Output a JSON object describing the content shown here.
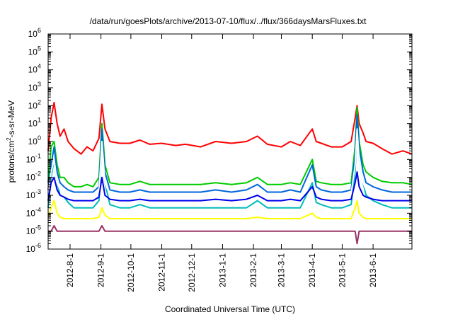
{
  "chart_data": {
    "type": "line",
    "title": "/data/run/goesPlots/archive/2013-07-10/flux/../flux/366daysMarsFluxes.txt",
    "xlabel": "Coordinated Universal Time (UTC)",
    "ylabel": {
      "pre": "protons/cm",
      "sup": "2",
      "post": "-s-sr-MeV"
    },
    "x_range": [
      "2012-07-10",
      "2013-07-10"
    ],
    "ylim": [
      1e-06,
      1000000.0
    ],
    "yscale": "log",
    "y_ticks": [
      {
        "value": 1e-06,
        "base": "10",
        "exp": "-6"
      },
      {
        "value": 1e-05,
        "base": "10",
        "exp": "-5"
      },
      {
        "value": 0.0001,
        "base": "10",
        "exp": "-4"
      },
      {
        "value": 0.001,
        "base": "10",
        "exp": "-3"
      },
      {
        "value": 0.01,
        "base": "10",
        "exp": "-2"
      },
      {
        "value": 0.1,
        "base": "10",
        "exp": "-1"
      },
      {
        "value": 1.0,
        "base": "10",
        "exp": "0"
      },
      {
        "value": 10.0,
        "base": "10",
        "exp": "1"
      },
      {
        "value": 100.0,
        "base": "10",
        "exp": "2"
      },
      {
        "value": 1000.0,
        "base": "10",
        "exp": "3"
      },
      {
        "value": 10000.0,
        "base": "10",
        "exp": "4"
      },
      {
        "value": 100000.0,
        "base": "10",
        "exp": "5"
      },
      {
        "value": 1000000.0,
        "base": "10",
        "exp": "6"
      }
    ],
    "x_ticks": [
      {
        "date": "2012-08-01",
        "label": "2012-8-1"
      },
      {
        "date": "2012-09-01",
        "label": "2012-9-1"
      },
      {
        "date": "2012-10-01",
        "label": "2012-10-1"
      },
      {
        "date": "2012-11-01",
        "label": "2012-11-1"
      },
      {
        "date": "2012-12-01",
        "label": "2012-12-1"
      },
      {
        "date": "2013-01-01",
        "label": "2013-1-1"
      },
      {
        "date": "2013-02-01",
        "label": "2013-2-1"
      },
      {
        "date": "2013-03-01",
        "label": "2013-3-1"
      },
      {
        "date": "2013-04-01",
        "label": "2013-4-1"
      },
      {
        "date": "2013-05-01",
        "label": "2013-5-1"
      },
      {
        "date": "2013-06-01",
        "label": "2013-6-1"
      }
    ],
    "grid": false,
    "legend": "none",
    "series": [
      {
        "color": "#ff0000",
        "x": [
          "2012-07-10",
          "2012-07-13",
          "2012-07-16",
          "2012-07-19",
          "2012-07-22",
          "2012-07-26",
          "2012-07-30",
          "2012-08-05",
          "2012-08-12",
          "2012-08-18",
          "2012-08-24",
          "2012-08-30",
          "2012-09-02",
          "2012-09-05",
          "2012-09-10",
          "2012-09-20",
          "2012-09-30",
          "2012-10-10",
          "2012-10-20",
          "2012-11-01",
          "2012-11-15",
          "2012-11-25",
          "2012-12-10",
          "2012-12-25",
          "2013-01-10",
          "2013-01-25",
          "2013-02-05",
          "2013-02-15",
          "2013-03-01",
          "2013-03-10",
          "2013-03-20",
          "2013-04-01",
          "2013-04-05",
          "2013-04-10",
          "2013-04-20",
          "2013-05-01",
          "2013-05-10",
          "2013-05-14",
          "2013-05-16",
          "2013-05-18",
          "2013-05-22",
          "2013-05-25",
          "2013-06-01",
          "2013-06-10",
          "2013-06-20",
          "2013-07-01",
          "2013-07-10"
        ],
        "y": [
          0.3,
          20,
          150,
          10,
          2,
          5,
          1,
          0.4,
          0.2,
          0.5,
          0.3,
          1.5,
          120,
          5,
          1,
          0.8,
          0.8,
          1.2,
          0.7,
          0.8,
          0.6,
          0.7,
          0.5,
          1,
          0.8,
          1,
          2,
          0.7,
          0.5,
          1,
          0.6,
          5,
          1,
          0.8,
          0.5,
          0.5,
          1,
          20,
          100,
          10,
          3,
          1,
          0.8,
          0.4,
          0.2,
          0.3,
          0.2
        ]
      },
      {
        "color": "#00cc00",
        "x": [
          "2012-07-10",
          "2012-07-13",
          "2012-07-16",
          "2012-07-19",
          "2012-07-22",
          "2012-07-26",
          "2012-07-30",
          "2012-08-05",
          "2012-08-12",
          "2012-08-18",
          "2012-08-24",
          "2012-08-30",
          "2012-09-02",
          "2012-09-05",
          "2012-09-10",
          "2012-09-20",
          "2012-09-30",
          "2012-10-10",
          "2012-10-20",
          "2012-11-01",
          "2012-11-15",
          "2012-11-25",
          "2012-12-10",
          "2012-12-25",
          "2013-01-10",
          "2013-01-25",
          "2013-02-05",
          "2013-02-15",
          "2013-03-01",
          "2013-03-10",
          "2013-03-20",
          "2013-04-01",
          "2013-04-05",
          "2013-04-10",
          "2013-04-20",
          "2013-05-01",
          "2013-05-10",
          "2013-05-14",
          "2013-05-16",
          "2013-05-18",
          "2013-05-22",
          "2013-05-25",
          "2013-06-01",
          "2013-06-10",
          "2013-06-20",
          "2013-07-01",
          "2013-07-10"
        ],
        "y": [
          0.005,
          0.5,
          1,
          0.05,
          0.01,
          0.01,
          0.005,
          0.003,
          0.003,
          0.004,
          0.003,
          0.01,
          10,
          0.05,
          0.005,
          0.004,
          0.004,
          0.006,
          0.004,
          0.004,
          0.004,
          0.004,
          0.004,
          0.005,
          0.004,
          0.005,
          0.01,
          0.004,
          0.004,
          0.005,
          0.004,
          0.1,
          0.006,
          0.005,
          0.004,
          0.004,
          0.005,
          0.5,
          80,
          1,
          0.05,
          0.02,
          0.01,
          0.006,
          0.005,
          0.005,
          0.004
        ]
      },
      {
        "color": "#00bbbb",
        "x": [
          "2012-07-10",
          "2012-07-13",
          "2012-07-16",
          "2012-07-19",
          "2012-07-22",
          "2012-07-26",
          "2012-07-30",
          "2012-08-05",
          "2012-08-12",
          "2012-08-18",
          "2012-08-24",
          "2012-08-30",
          "2012-09-02",
          "2012-09-05",
          "2012-09-10",
          "2012-09-20",
          "2012-09-30",
          "2012-10-10",
          "2012-10-20",
          "2012-11-01",
          "2012-11-15",
          "2012-11-25",
          "2012-12-10",
          "2012-12-25",
          "2013-01-10",
          "2013-01-25",
          "2013-02-05",
          "2013-02-15",
          "2013-03-01",
          "2013-03-10",
          "2013-03-20",
          "2013-04-01",
          "2013-04-05",
          "2013-04-10",
          "2013-04-20",
          "2013-05-01",
          "2013-05-10",
          "2013-05-14",
          "2013-05-16",
          "2013-05-18",
          "2013-05-22",
          "2013-05-25",
          "2013-06-01",
          "2013-06-10",
          "2013-06-20",
          "2013-07-01",
          "2013-07-10"
        ],
        "y": [
          0.0002,
          0.01,
          0.1,
          0.005,
          0.001,
          0.0008,
          0.0004,
          0.0002,
          0.0002,
          0.0002,
          0.0002,
          0.0005,
          2,
          0.005,
          0.0003,
          0.0002,
          0.0002,
          0.0003,
          0.0002,
          0.0002,
          0.0002,
          0.0002,
          0.0002,
          0.0002,
          0.0002,
          0.0002,
          0.0005,
          0.0002,
          0.0002,
          0.0002,
          0.0002,
          0.005,
          0.0004,
          0.0003,
          0.0002,
          0.0002,
          0.0003,
          0.02,
          10,
          0.1,
          0.005,
          0.001,
          0.0005,
          0.0003,
          0.0002,
          0.0002,
          0.0002
        ]
      },
      {
        "color": "#0066dd",
        "x": [
          "2012-07-10",
          "2012-07-13",
          "2012-07-16",
          "2012-07-19",
          "2012-07-22",
          "2012-07-26",
          "2012-07-30",
          "2012-08-05",
          "2012-08-12",
          "2012-08-18",
          "2012-08-24",
          "2012-08-30",
          "2012-09-02",
          "2012-09-05",
          "2012-09-10",
          "2012-09-20",
          "2012-09-30",
          "2012-10-10",
          "2012-10-20",
          "2012-11-01",
          "2012-11-15",
          "2012-11-25",
          "2012-12-10",
          "2012-12-25",
          "2013-01-10",
          "2013-01-25",
          "2013-02-05",
          "2013-02-15",
          "2013-03-01",
          "2013-03-10",
          "2013-03-20",
          "2013-04-01",
          "2013-04-05",
          "2013-04-10",
          "2013-04-20",
          "2013-05-01",
          "2013-05-10",
          "2013-05-14",
          "2013-05-16",
          "2013-05-18",
          "2013-05-22",
          "2013-05-25",
          "2013-06-01",
          "2013-06-10",
          "2013-06-20",
          "2013-07-01",
          "2013-07-10"
        ],
        "y": [
          0.002,
          0.05,
          0.5,
          0.02,
          0.005,
          0.003,
          0.002,
          0.0015,
          0.0015,
          0.0015,
          0.0015,
          0.003,
          5,
          0.02,
          0.002,
          0.0015,
          0.0015,
          0.002,
          0.0015,
          0.0015,
          0.0015,
          0.0015,
          0.0015,
          0.002,
          0.0015,
          0.002,
          0.004,
          0.0015,
          0.0015,
          0.002,
          0.0015,
          0.05,
          0.003,
          0.002,
          0.0015,
          0.0015,
          0.002,
          0.2,
          30,
          0.5,
          0.02,
          0.005,
          0.003,
          0.002,
          0.0015,
          0.0015,
          0.0015
        ]
      },
      {
        "color": "#ffffff",
        "x": [
          "2012-07-10",
          "2012-07-13",
          "2012-07-16",
          "2012-07-19",
          "2012-07-22",
          "2012-07-26",
          "2012-07-30",
          "2012-08-05",
          "2012-08-12",
          "2012-08-18",
          "2012-08-24",
          "2012-08-30",
          "2012-09-02",
          "2012-09-05",
          "2012-09-10",
          "2012-09-20",
          "2012-09-30",
          "2012-10-10",
          "2012-10-20",
          "2012-11-01",
          "2012-11-15",
          "2012-11-25",
          "2012-12-10",
          "2012-12-25",
          "2013-01-10",
          "2013-01-25",
          "2013-02-05",
          "2013-02-15",
          "2013-03-01",
          "2013-03-10",
          "2013-03-20",
          "2013-04-01",
          "2013-04-05",
          "2013-04-10",
          "2013-04-20",
          "2013-05-01",
          "2013-05-10",
          "2013-05-14",
          "2013-05-16",
          "2013-05-18",
          "2013-05-22",
          "2013-05-25",
          "2013-06-01",
          "2013-06-10",
          "2013-06-20",
          "2013-07-01",
          "2013-07-10"
        ],
        "y": [
          0.001,
          0.02,
          0.1,
          0.005,
          0.002,
          0.0015,
          0.001,
          0.001,
          0.001,
          0.001,
          0.001,
          0.0015,
          1,
          0.005,
          0.001,
          0.001,
          0.001,
          0.0012,
          0.001,
          0.001,
          0.001,
          0.001,
          0.001,
          0.0012,
          0.001,
          0.0012,
          0.002,
          0.001,
          0.001,
          0.0012,
          0.001,
          0.01,
          0.0015,
          0.0012,
          0.001,
          0.001,
          0.0012,
          0.05,
          5,
          0.1,
          0.005,
          0.002,
          0.0015,
          0.0012,
          0.001,
          0.001,
          0.001
        ]
      },
      {
        "color": "#0000ee",
        "x": [
          "2012-07-10",
          "2012-07-13",
          "2012-07-16",
          "2012-07-19",
          "2012-07-22",
          "2012-07-26",
          "2012-07-30",
          "2012-08-05",
          "2012-08-12",
          "2012-08-18",
          "2012-08-24",
          "2012-08-30",
          "2012-09-02",
          "2012-09-05",
          "2012-09-10",
          "2012-09-20",
          "2012-09-30",
          "2012-10-10",
          "2012-10-20",
          "2012-11-01",
          "2012-11-15",
          "2012-11-25",
          "2012-12-10",
          "2012-12-25",
          "2013-01-10",
          "2013-01-25",
          "2013-02-05",
          "2013-02-15",
          "2013-03-01",
          "2013-03-10",
          "2013-03-20",
          "2013-04-01",
          "2013-04-05",
          "2013-04-10",
          "2013-04-20",
          "2013-05-01",
          "2013-05-10",
          "2013-05-14",
          "2013-05-16",
          "2013-05-18",
          "2013-05-22",
          "2013-05-25",
          "2013-06-01",
          "2013-06-10",
          "2013-06-20",
          "2013-07-01",
          "2013-07-10"
        ],
        "y": [
          0.0005,
          0.005,
          0.01,
          0.002,
          0.001,
          0.0008,
          0.0006,
          0.0005,
          0.0005,
          0.0005,
          0.0005,
          0.0008,
          0.01,
          0.001,
          0.0006,
          0.0005,
          0.0005,
          0.0006,
          0.0005,
          0.0005,
          0.0005,
          0.0005,
          0.0005,
          0.0006,
          0.0005,
          0.0006,
          0.001,
          0.0005,
          0.0005,
          0.0006,
          0.0005,
          0.003,
          0.0008,
          0.0006,
          0.0005,
          0.0005,
          0.0006,
          0.005,
          0.02,
          0.003,
          0.001,
          0.0008,
          0.0006,
          0.0005,
          0.0005,
          0.0005,
          0.0005
        ]
      },
      {
        "color": "#ffff00",
        "x": [
          "2012-07-10",
          "2012-07-13",
          "2012-07-16",
          "2012-07-19",
          "2012-07-22",
          "2012-07-26",
          "2012-07-30",
          "2012-08-05",
          "2012-08-12",
          "2012-08-18",
          "2012-08-24",
          "2012-08-30",
          "2012-09-02",
          "2012-09-05",
          "2012-09-10",
          "2012-09-20",
          "2012-09-30",
          "2012-10-10",
          "2012-10-20",
          "2012-11-01",
          "2012-11-15",
          "2012-11-25",
          "2012-12-10",
          "2012-12-25",
          "2013-01-10",
          "2013-01-25",
          "2013-02-05",
          "2013-02-15",
          "2013-03-01",
          "2013-03-10",
          "2013-03-20",
          "2013-04-01",
          "2013-04-05",
          "2013-04-10",
          "2013-04-20",
          "2013-05-01",
          "2013-05-10",
          "2013-05-14",
          "2013-05-16",
          "2013-05-18",
          "2013-05-22",
          "2013-05-25",
          "2013-06-01",
          "2013-06-10",
          "2013-06-20",
          "2013-07-01",
          "2013-07-10"
        ],
        "y": [
          6e-05,
          0.0002,
          0.0005,
          0.0001,
          6e-05,
          5e-05,
          5e-05,
          5e-05,
          5e-05,
          5e-05,
          5e-05,
          6e-05,
          0.0002,
          8e-05,
          5e-05,
          5e-05,
          5e-05,
          5e-05,
          5e-05,
          5e-05,
          5e-05,
          5e-05,
          5e-05,
          5e-05,
          5e-05,
          5e-05,
          6e-05,
          5e-05,
          5e-05,
          5e-05,
          5e-05,
          0.0001,
          6e-05,
          5e-05,
          5e-05,
          5e-05,
          5e-05,
          0.0002,
          0.0005,
          0.0001,
          6e-05,
          5e-05,
          5e-05,
          5e-05,
          5e-05,
          5e-05,
          5e-05
        ]
      },
      {
        "color": "#993366",
        "x": [
          "2012-07-10",
          "2012-07-13",
          "2012-07-16",
          "2012-07-19",
          "2012-07-22",
          "2012-07-26",
          "2012-07-30",
          "2012-08-05",
          "2012-08-12",
          "2012-08-18",
          "2012-08-24",
          "2012-08-30",
          "2012-09-02",
          "2012-09-05",
          "2012-09-10",
          "2012-09-20",
          "2012-09-30",
          "2012-10-10",
          "2012-10-20",
          "2012-11-01",
          "2012-11-15",
          "2012-11-25",
          "2012-12-10",
          "2012-12-25",
          "2013-01-10",
          "2013-01-25",
          "2013-02-05",
          "2013-02-15",
          "2013-03-01",
          "2013-03-10",
          "2013-03-20",
          "2013-04-01",
          "2013-04-05",
          "2013-04-10",
          "2013-04-20",
          "2013-05-01",
          "2013-05-10",
          "2013-05-14",
          "2013-05-16",
          "2013-05-18",
          "2013-05-22",
          "2013-05-25",
          "2013-06-01",
          "2013-06-10",
          "2013-06-20",
          "2013-07-01",
          "2013-07-10"
        ],
        "y": [
          1e-05,
          1e-05,
          2e-05,
          1e-05,
          1e-05,
          1e-05,
          1e-05,
          1e-05,
          1e-05,
          1e-05,
          1e-05,
          1e-05,
          2e-05,
          1e-05,
          1e-05,
          1e-05,
          1e-05,
          1e-05,
          1e-05,
          1e-05,
          1e-05,
          1e-05,
          1e-05,
          1e-05,
          1e-05,
          1e-05,
          1e-05,
          1e-05,
          1e-05,
          1e-05,
          1e-05,
          1e-05,
          1e-05,
          1e-05,
          1e-05,
          1e-05,
          1e-05,
          1e-05,
          2e-06,
          1e-05,
          1e-05,
          1e-05,
          1e-05,
          1e-05,
          1e-05,
          1e-05,
          1e-05
        ]
      }
    ]
  }
}
